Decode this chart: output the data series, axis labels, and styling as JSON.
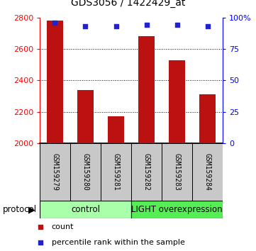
{
  "title": "GDS3056 / 1422429_at",
  "samples": [
    "GSM159279",
    "GSM159280",
    "GSM159281",
    "GSM159282",
    "GSM159283",
    "GSM159284"
  ],
  "counts": [
    2780,
    2340,
    2170,
    2680,
    2530,
    2310
  ],
  "percentile_ranks": [
    96,
    93,
    93,
    94,
    94,
    93
  ],
  "ylim_left": [
    2000,
    2800
  ],
  "ylim_right": [
    0,
    100
  ],
  "yticks_left": [
    2000,
    2200,
    2400,
    2600,
    2800
  ],
  "yticks_right": [
    0,
    25,
    50,
    75,
    100
  ],
  "ytick_labels_right": [
    "0",
    "25",
    "50",
    "75",
    "100%"
  ],
  "grid_values": [
    2200,
    2400,
    2600
  ],
  "bar_color": "#bb1111",
  "marker_color": "#2222cc",
  "bar_width": 0.55,
  "control_label": "control",
  "light_label": "LIGHT overexpression",
  "control_color": "#aaffaa",
  "light_color": "#55ee55",
  "label_bg_color": "#c8c8c8",
  "legend_count_label": "count",
  "legend_pct_label": "percentile rank within the sample",
  "protocol_label": "protocol",
  "background_color": "#ffffff",
  "title_fontsize": 10,
  "axis_fontsize": 8,
  "label_fontsize": 7,
  "legend_fontsize": 8
}
